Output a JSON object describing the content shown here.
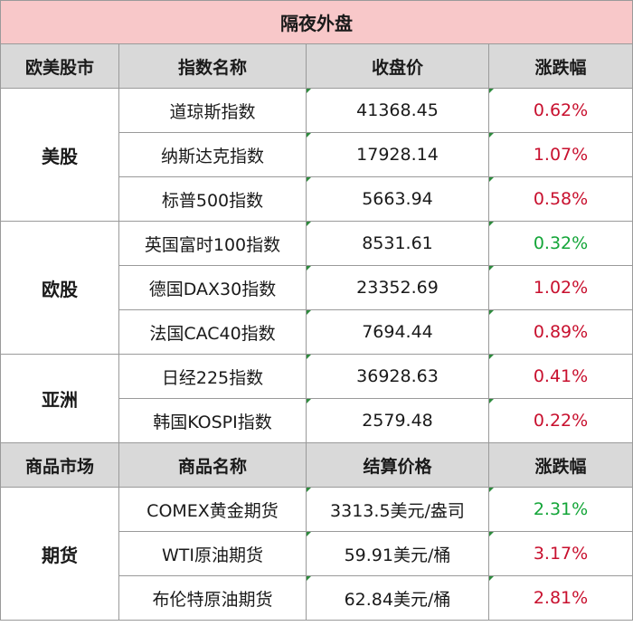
{
  "title": "隔夜外盘",
  "index_header": {
    "market": "欧美股市",
    "name": "指数名称",
    "close": "收盘价",
    "change": "涨跌幅"
  },
  "index_groups": [
    {
      "group": "美股",
      "rows": [
        {
          "name": "道琼斯指数",
          "close": "41368.45",
          "change": "0.62%",
          "dir": "up"
        },
        {
          "name": "纳斯达克指数",
          "close": "17928.14",
          "change": "1.07%",
          "dir": "up"
        },
        {
          "name": "标普500指数",
          "close": "5663.94",
          "change": "0.58%",
          "dir": "up"
        }
      ]
    },
    {
      "group": "欧股",
      "rows": [
        {
          "name": "英国富时100指数",
          "close": "8531.61",
          "change": "0.32%",
          "dir": "down"
        },
        {
          "name": "德国DAX30指数",
          "close": "23352.69",
          "change": "1.02%",
          "dir": "up"
        },
        {
          "name": "法国CAC40指数",
          "close": "7694.44",
          "change": "0.89%",
          "dir": "up"
        }
      ]
    },
    {
      "group": "亚洲",
      "rows": [
        {
          "name": "日经225指数",
          "close": "36928.63",
          "change": "0.41%",
          "dir": "up"
        },
        {
          "name": "韩国KOSPI指数",
          "close": "2579.48",
          "change": "0.22%",
          "dir": "up"
        }
      ]
    }
  ],
  "commodity_header": {
    "market": "商品市场",
    "name": "商品名称",
    "close": "结算价格",
    "change": "涨跌幅"
  },
  "commodity_groups": [
    {
      "group": "期货",
      "rows": [
        {
          "name": "COMEX黄金期货",
          "close": "3313.5美元/盎司",
          "change": "2.31%",
          "dir": "down"
        },
        {
          "name": "WTI原油期货",
          "close": "59.91美元/桶",
          "change": "3.17%",
          "dir": "up"
        },
        {
          "name": "布伦特原油期货",
          "close": "62.84美元/桶",
          "change": "2.81%",
          "dir": "up"
        }
      ]
    }
  ],
  "colors": {
    "title_bg": "#f8c8c9",
    "header_bg": "#d9d9d9",
    "up": "#c8102e",
    "down": "#13a538"
  }
}
